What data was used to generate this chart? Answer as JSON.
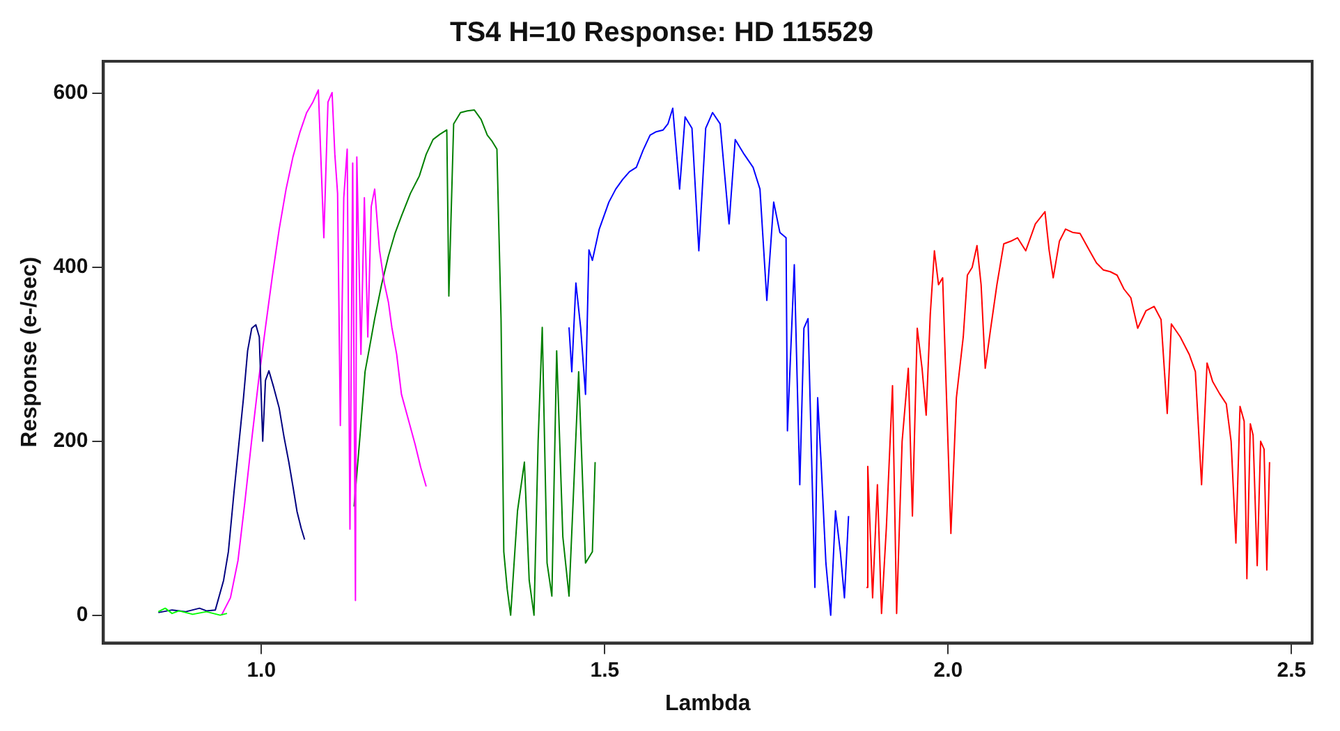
{
  "chart_data": {
    "type": "line",
    "title": "TS4 H=10 Response: HD 115529",
    "xlabel": "Lambda",
    "ylabel": "Response (e-/sec)",
    "xlim": [
      0.77,
      2.53
    ],
    "ylim": [
      -32,
      637
    ],
    "xticks": [
      {
        "value": 1,
        "label": "1.0"
      },
      1.5,
      {
        "value": 2,
        "label": "2.0"
      },
      2.5
    ],
    "yticks": [
      0,
      200,
      400,
      600
    ],
    "grid": false,
    "legend": false,
    "marker": "none",
    "line_style": "solid",
    "series": [
      {
        "color": "#00ff00",
        "x": [
          0.85,
          0.86,
          0.87,
          0.88,
          0.9,
          0.92,
          0.94,
          0.95
        ],
        "values": [
          4,
          8,
          2,
          5,
          1,
          4,
          0,
          2
        ]
      },
      {
        "color": "#000080",
        "x": [
          0.85,
          0.87,
          0.89,
          0.91,
          0.92,
          0.933,
          0.945,
          0.952,
          0.96,
          0.966,
          0.974,
          0.98,
          0.986,
          0.992,
          0.997,
          1.002,
          1.006,
          1.011,
          1.018,
          1.026,
          1.033,
          1.04,
          1.046,
          1.052,
          1.058,
          1.063
        ],
        "values": [
          3,
          6,
          4,
          8,
          5,
          6,
          40,
          73,
          140,
          187,
          250,
          304,
          330,
          334,
          320,
          200,
          270,
          281,
          262,
          238,
          205,
          176,
          148,
          119,
          100,
          87
        ]
      },
      {
        "color": "#ff00ff",
        "x": [
          0.942,
          0.955,
          0.966,
          0.976,
          0.986,
          0.996,
          1.006,
          1.016,
          1.026,
          1.036,
          1.046,
          1.056,
          1.066,
          1.075,
          1.083,
          1.091,
          1.097,
          1.103,
          1.107,
          1.111,
          1.115,
          1.12,
          1.125,
          1.129,
          1.133,
          1.137,
          1.139,
          1.145,
          1.15,
          1.155,
          1.16,
          1.165,
          1.172,
          1.179,
          1.185,
          1.19,
          1.197,
          1.204,
          1.214,
          1.224,
          1.232,
          1.24
        ],
        "values": [
          0,
          20,
          63,
          130,
          202,
          270,
          331,
          390,
          444,
          490,
          527,
          555,
          578,
          590,
          604,
          434,
          590,
          601,
          530,
          485,
          218,
          480,
          536,
          99,
          520,
          17,
          527,
          300,
          480,
          320,
          470,
          490,
          420,
          382,
          360,
          331,
          300,
          254,
          225,
          196,
          170,
          148
        ]
      },
      {
        "color": "#008000",
        "x": [
          1.135,
          1.143,
          1.151,
          1.158,
          1.165,
          1.175,
          1.185,
          1.195,
          1.204,
          1.217,
          1.23,
          1.24,
          1.25,
          1.26,
          1.27,
          1.273,
          1.28,
          1.29,
          1.3,
          1.31,
          1.32,
          1.329,
          1.336,
          1.343,
          1.349,
          1.353,
          1.358,
          1.363,
          1.373,
          1.383,
          1.39,
          1.397,
          1.403,
          1.409,
          1.416,
          1.423,
          1.43,
          1.439,
          1.448,
          1.455,
          1.462,
          1.472,
          1.482,
          1.486
        ],
        "values": [
          125,
          200,
          280,
          310,
          341,
          380,
          413,
          440,
          459,
          485,
          505,
          530,
          547,
          553,
          558,
          367,
          565,
          578,
          580,
          581,
          570,
          552,
          545,
          536,
          341,
          73,
          30,
          0,
          120,
          176,
          40,
          0,
          200,
          331,
          60,
          22,
          304,
          90,
          22,
          150,
          280,
          60,
          73,
          176
        ]
      },
      {
        "color": "#0000ff",
        "x": [
          1.448,
          1.452,
          1.458,
          1.465,
          1.472,
          1.477,
          1.482,
          1.492,
          1.506,
          1.516,
          1.526,
          1.536,
          1.546,
          1.556,
          1.566,
          1.575,
          1.585,
          1.592,
          1.599,
          1.609,
          1.617,
          1.627,
          1.637,
          1.647,
          1.657,
          1.668,
          1.681,
          1.69,
          1.703,
          1.716,
          1.726,
          1.736,
          1.746,
          1.755,
          1.764,
          1.766,
          1.776,
          1.784,
          1.79,
          1.796,
          1.806,
          1.81,
          1.815,
          1.822,
          1.829,
          1.836,
          1.843,
          1.849,
          1.855
        ],
        "values": [
          331,
          280,
          382,
          330,
          254,
          420,
          408,
          444,
          475,
          490,
          501,
          510,
          515,
          535,
          552,
          556,
          558,
          565,
          583,
          490,
          573,
          560,
          419,
          560,
          578,
          565,
          450,
          547,
          530,
          515,
          490,
          362,
          475,
          440,
          434,
          212,
          403,
          150,
          330,
          341,
          32,
          250,
          176,
          60,
          0,
          120,
          73,
          20,
          114
        ]
      },
      {
        "color": "#ff0000",
        "x": [
          1.881,
          1.883,
          1.89,
          1.897,
          1.903,
          1.91,
          1.919,
          1.925,
          1.933,
          1.942,
          1.948,
          1.955,
          1.962,
          1.968,
          1.974,
          1.98,
          1.986,
          1.992,
          2.004,
          2.012,
          2.022,
          2.028,
          2.035,
          2.042,
          2.048,
          2.054,
          2.062,
          2.071,
          2.081,
          2.091,
          2.101,
          2.113,
          2.127,
          2.141,
          2.147,
          2.153,
          2.162,
          2.171,
          2.182,
          2.192,
          2.206,
          2.216,
          2.226,
          2.236,
          2.246,
          2.256,
          2.266,
          2.276,
          2.288,
          2.3,
          2.31,
          2.319,
          2.325,
          2.338,
          2.351,
          2.36,
          2.369,
          2.377,
          2.385,
          2.395,
          2.405,
          2.412,
          2.419,
          2.425,
          2.431,
          2.435,
          2.44,
          2.444,
          2.45,
          2.455,
          2.46,
          2.464,
          2.468
        ],
        "values": [
          32,
          171,
          20,
          150,
          2,
          100,
          264,
          2,
          200,
          284,
          114,
          330,
          284,
          230,
          346,
          419,
          380,
          388,
          94,
          250,
          320,
          391,
          400,
          425,
          380,
          284,
          330,
          380,
          427,
          430,
          434,
          419,
          450,
          464,
          420,
          388,
          430,
          444,
          440,
          439,
          419,
          405,
          397,
          395,
          391,
          375,
          365,
          330,
          350,
          355,
          340,
          232,
          335,
          320,
          300,
          280,
          150,
          290,
          269,
          255,
          243,
          200,
          83,
          240,
          223,
          42,
          220,
          207,
          57,
          200,
          191,
          52,
          176
        ]
      }
    ]
  }
}
